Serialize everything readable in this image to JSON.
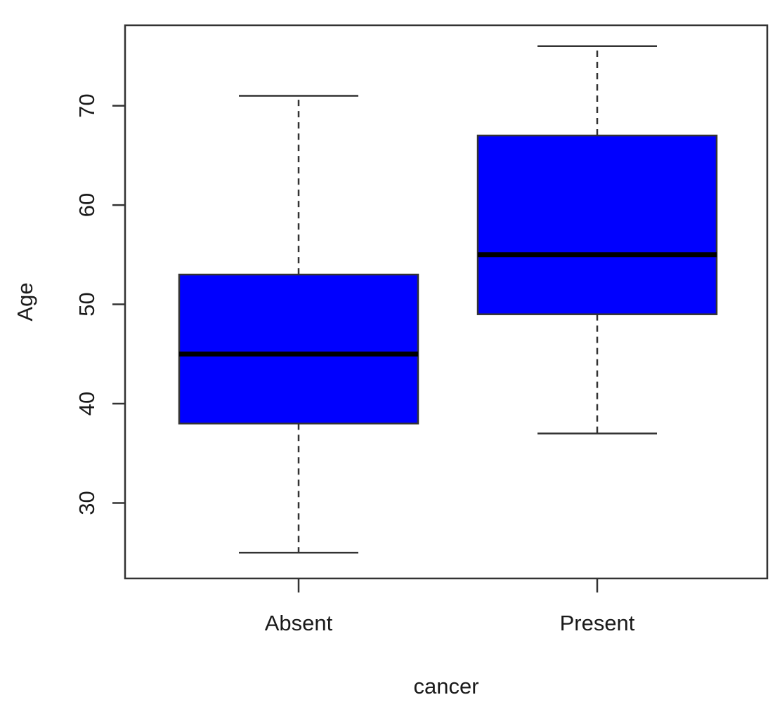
{
  "chart_data": {
    "type": "boxplot",
    "title": "",
    "xlabel": "cancer",
    "ylabel": "Age",
    "ylim": [
      22.4,
      78.1
    ],
    "yticks": [
      30,
      40,
      50,
      60,
      70
    ],
    "grid": false,
    "legend": "none",
    "box_color": "#0000ff",
    "categories": [
      "Absent",
      "Present"
    ],
    "groups": [
      {
        "category": "Absent",
        "whisker_low": 25,
        "q1": 38,
        "median": 45,
        "q3": 53,
        "whisker_high": 71
      },
      {
        "category": "Present",
        "whisker_low": 37,
        "q1": 49,
        "median": 55,
        "q3": 67,
        "whisker_high": 76
      }
    ]
  }
}
